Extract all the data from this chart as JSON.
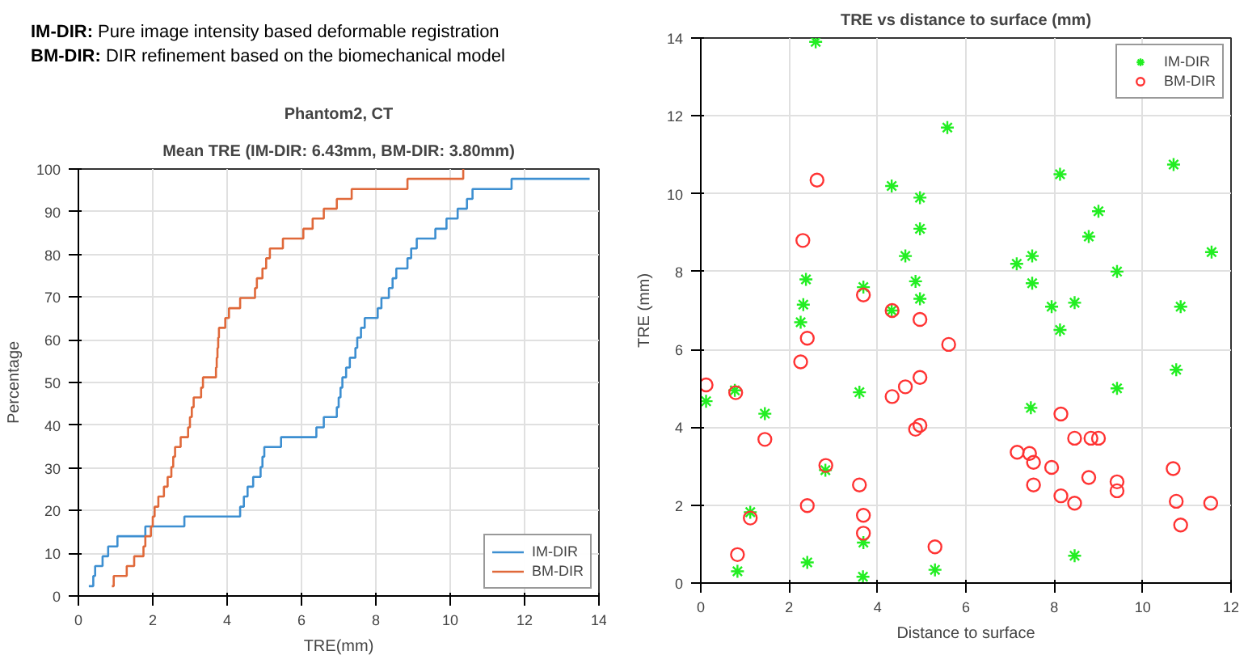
{
  "chart_data": [
    {
      "type": "step",
      "title": "Phantom2, CT",
      "subtitle": "Mean TRE (IM-DIR: 6.43mm, BM-DIR: 3.80mm)",
      "xlabel": "TRE(mm)",
      "ylabel": "Percentage",
      "annotations": [
        "IM-DIR:  Pure image intensity based deformable registration",
        "BM-DIR: DIR refinement based on the biomechanical model"
      ],
      "xlim": [
        0,
        14
      ],
      "xticks": [
        0,
        2,
        4,
        6,
        8,
        10,
        12,
        14
      ],
      "ylim": [
        0,
        100
      ],
      "yticks": [
        0,
        10,
        20,
        30,
        40,
        50,
        60,
        70,
        80,
        90,
        100
      ],
      "grid": true,
      "legend": "bottom right",
      "marker": "none",
      "line_style": "solid",
      "series": [
        {
          "name": "IM-DIR",
          "color": "#3d8fd1",
          "x": [
            0.28,
            0.4,
            0.45,
            0.65,
            0.8,
            1.05,
            1.8,
            2.85,
            4.35,
            4.45,
            4.55,
            4.7,
            4.9,
            4.95,
            5.0,
            5.45,
            6.4,
            6.6,
            6.95,
            7.0,
            7.05,
            7.1,
            7.2,
            7.3,
            7.45,
            7.5,
            7.6,
            7.7,
            8.05,
            8.15,
            8.35,
            8.45,
            8.55,
            8.85,
            8.95,
            9.1,
            9.6,
            9.9,
            10.2,
            10.45,
            10.6,
            11.65,
            13.75
          ],
          "values": [
            2.3,
            4.7,
            7.0,
            9.3,
            11.6,
            14.0,
            16.3,
            18.6,
            20.9,
            23.3,
            25.6,
            27.9,
            30.2,
            32.6,
            34.9,
            37.2,
            39.5,
            41.9,
            44.2,
            46.5,
            48.8,
            51.2,
            53.5,
            55.8,
            58.1,
            60.5,
            62.8,
            65.1,
            67.4,
            69.8,
            72.1,
            74.4,
            76.7,
            79.1,
            81.4,
            83.7,
            86.0,
            88.4,
            90.7,
            93.0,
            95.3,
            97.7,
            97.7
          ]
        },
        {
          "name": "BM-DIR",
          "color": "#e0693a",
          "x": [
            0.9,
            0.95,
            1.3,
            1.5,
            1.75,
            1.8,
            1.95,
            2.0,
            2.05,
            2.15,
            2.3,
            2.4,
            2.5,
            2.55,
            2.6,
            2.75,
            2.95,
            3.0,
            3.05,
            3.1,
            3.3,
            3.35,
            3.7,
            3.72,
            3.74,
            3.76,
            3.78,
            3.95,
            4.05,
            4.35,
            4.75,
            4.8,
            4.95,
            5.05,
            5.15,
            5.5,
            6.05,
            6.3,
            6.6,
            6.95,
            7.35,
            8.85,
            10.35
          ],
          "values": [
            2.3,
            4.7,
            7.0,
            9.3,
            11.6,
            14.0,
            16.3,
            18.6,
            20.9,
            23.3,
            25.6,
            27.9,
            30.2,
            32.6,
            34.9,
            37.2,
            39.5,
            41.9,
            44.2,
            46.5,
            48.8,
            51.2,
            53.5,
            55.8,
            58.1,
            60.5,
            62.8,
            65.1,
            67.4,
            69.8,
            72.1,
            74.4,
            76.7,
            79.1,
            81.4,
            83.7,
            86.0,
            88.4,
            90.7,
            93.0,
            95.3,
            97.7,
            100
          ]
        }
      ]
    },
    {
      "type": "scatter",
      "title": "TRE vs distance to surface (mm)",
      "xlabel": "Distance to surface",
      "ylabel": "TRE (mm)",
      "xlim": [
        0,
        12
      ],
      "xticks": [
        0,
        2,
        4,
        6,
        8,
        10,
        12
      ],
      "ylim": [
        0,
        14
      ],
      "yticks": [
        0,
        2,
        4,
        6,
        8,
        10,
        12,
        14
      ],
      "grid": true,
      "legend": "top right",
      "series": [
        {
          "name": "IM-DIR",
          "color": "#22ee22",
          "marker": "cross",
          "x": [
            2.6,
            5.58,
            4.32,
            4.96,
            4.96,
            4.63,
            7.15,
            7.5,
            8.13,
            8.78,
            9.0,
            9.42,
            10.7,
            11.56,
            2.38,
            2.32,
            3.68,
            4.86,
            4.96,
            4.32,
            7.5,
            7.94,
            8.46,
            10.86,
            2.26,
            0.77,
            0.12,
            1.45,
            3.59,
            7.47,
            8.13,
            9.42,
            10.76,
            1.12,
            0.83,
            2.41,
            3.68,
            3.67,
            2.82,
            5.3,
            8.46
          ],
          "values": [
            13.9,
            11.7,
            10.2,
            9.9,
            9.1,
            8.4,
            8.2,
            8.4,
            10.5,
            8.9,
            9.55,
            8.0,
            10.75,
            8.5,
            7.8,
            7.15,
            7.6,
            7.75,
            7.3,
            7.0,
            7.7,
            7.1,
            7.2,
            7.1,
            6.7,
            4.95,
            4.67,
            4.35,
            4.9,
            4.5,
            6.5,
            5.0,
            5.48,
            1.82,
            0.3,
            0.53,
            1.04,
            0.16,
            2.9,
            0.34,
            0.7
          ]
        },
        {
          "name": "BM-DIR",
          "color": "#ff3333",
          "marker": "circle",
          "x": [
            2.63,
            2.31,
            3.68,
            4.33,
            4.96,
            0.12,
            0.79,
            1.45,
            2.26,
            2.41,
            2.41,
            1.12,
            0.83,
            2.83,
            3.59,
            3.68,
            3.68,
            4.33,
            4.63,
            4.96,
            4.86,
            4.96,
            5.61,
            5.3,
            7.16,
            7.44,
            7.53,
            7.53,
            7.94,
            8.15,
            8.46,
            8.83,
            9.0,
            8.15,
            8.46,
            8.78,
            9.42,
            9.42,
            10.69,
            10.76,
            10.86,
            11.54
          ],
          "values": [
            10.35,
            8.8,
            7.4,
            7.0,
            6.77,
            5.09,
            4.89,
            3.69,
            5.68,
            6.29,
            1.99,
            1.67,
            0.73,
            3.02,
            2.52,
            1.74,
            1.28,
            4.79,
            5.04,
            5.28,
            3.95,
            4.05,
            6.13,
            0.93,
            3.36,
            3.33,
            3.1,
            2.52,
            2.97,
            4.34,
            3.72,
            3.72,
            3.72,
            2.24,
            2.05,
            2.71,
            2.6,
            2.37,
            2.94,
            2.1,
            1.49,
            2.05
          ]
        }
      ]
    }
  ]
}
